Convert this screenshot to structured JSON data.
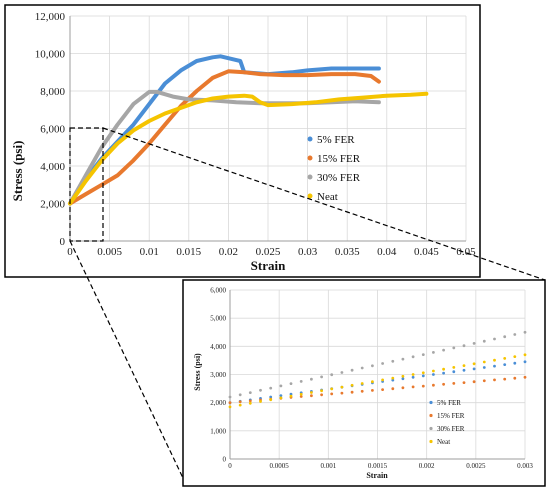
{
  "chart_data": [
    {
      "id": "main",
      "type": "line",
      "title": "",
      "xlabel": "Strain",
      "ylabel": "Stress (psi)",
      "xlim": [
        0,
        0.05
      ],
      "ylim": [
        0,
        12000
      ],
      "x_ticks": [
        0,
        0.005,
        0.01,
        0.015,
        0.02,
        0.025,
        0.03,
        0.035,
        0.04,
        0.045,
        0.05
      ],
      "x_tick_labels": [
        "0",
        "0.005",
        "0.01",
        "0.015",
        "0.02",
        "0.025",
        "0.03",
        "0.035",
        "0.04",
        "0.045",
        "0.05"
      ],
      "y_ticks": [
        0,
        2000,
        4000,
        6000,
        8000,
        10000,
        12000
      ],
      "y_tick_labels": [
        "0",
        "2,000",
        "4,000",
        "6,000",
        "8,000",
        "10,000",
        "12,000"
      ],
      "grid": true,
      "legend_position": "right",
      "series": [
        {
          "name": "5% FER",
          "color": "#4a8ed6",
          "x": [
            0,
            0.002,
            0.004,
            0.006,
            0.008,
            0.01,
            0.012,
            0.014,
            0.016,
            0.018,
            0.019,
            0.02,
            0.021,
            0.0215,
            0.022,
            0.025,
            0.028,
            0.03,
            0.033,
            0.036,
            0.039
          ],
          "y": [
            2000,
            3300,
            4400,
            5300,
            6200,
            7300,
            8400,
            9100,
            9600,
            9800,
            9850,
            9750,
            9650,
            9600,
            9000,
            8900,
            9000,
            9100,
            9200,
            9200,
            9200
          ]
        },
        {
          "name": "15% FER",
          "color": "#e8792e",
          "x": [
            0,
            0.002,
            0.004,
            0.006,
            0.008,
            0.01,
            0.012,
            0.014,
            0.016,
            0.018,
            0.02,
            0.022,
            0.024,
            0.027,
            0.03,
            0.033,
            0.036,
            0.038,
            0.039
          ],
          "y": [
            2000,
            2500,
            3000,
            3500,
            4300,
            5200,
            6200,
            7200,
            8000,
            8700,
            9050,
            9000,
            8900,
            8850,
            8850,
            8900,
            8900,
            8800,
            8500
          ]
        },
        {
          "name": "30% FER",
          "color": "#a6a6a6",
          "x": [
            0,
            0.002,
            0.004,
            0.006,
            0.008,
            0.01,
            0.011,
            0.013,
            0.015,
            0.018,
            0.021,
            0.024,
            0.027,
            0.03,
            0.033,
            0.036,
            0.039
          ],
          "y": [
            2000,
            3500,
            5000,
            6200,
            7300,
            7950,
            7950,
            7700,
            7550,
            7500,
            7400,
            7350,
            7350,
            7350,
            7400,
            7450,
            7400
          ]
        },
        {
          "name": "Neat",
          "color": "#f5c400",
          "x": [
            0,
            0.002,
            0.004,
            0.006,
            0.008,
            0.01,
            0.012,
            0.014,
            0.016,
            0.018,
            0.02,
            0.022,
            0.023,
            0.024,
            0.025,
            0.028,
            0.031,
            0.034,
            0.037,
            0.04,
            0.043,
            0.045
          ],
          "y": [
            2000,
            3200,
            4300,
            5200,
            5900,
            6400,
            6800,
            7100,
            7400,
            7600,
            7700,
            7750,
            7700,
            7400,
            7250,
            7300,
            7400,
            7550,
            7650,
            7750,
            7800,
            7850
          ]
        }
      ]
    },
    {
      "id": "inset",
      "type": "scatter",
      "title": "",
      "xlabel": "Strain",
      "ylabel": "Stress (psi)",
      "xlim": [
        0,
        0.003
      ],
      "ylim": [
        0,
        6000
      ],
      "x_ticks": [
        0,
        0.0005,
        0.001,
        0.0015,
        0.002,
        0.0025,
        0.003
      ],
      "x_tick_labels": [
        "0",
        "0.0005",
        "0.001",
        "0.0015",
        "0.002",
        "0.0025",
        "0.003"
      ],
      "y_ticks": [
        0,
        1000,
        2000,
        3000,
        4000,
        5000,
        6000
      ],
      "y_tick_labels": [
        "0",
        "1,000",
        "2,000",
        "3,000",
        "4,000",
        "5,000",
        "6,000"
      ],
      "grid": true,
      "legend_position": "bottom-center",
      "series": [
        {
          "name": "5% FER",
          "color": "#4a8ed6",
          "start": 2000,
          "end": 3450
        },
        {
          "name": "15% FER",
          "color": "#e8792e",
          "start": 2000,
          "end": 2900
        },
        {
          "name": "30% FER",
          "color": "#a6a6a6",
          "start": 2200,
          "end": 4500
        },
        {
          "name": "Neat",
          "color": "#f5c400",
          "start": 1850,
          "end": 3700
        }
      ]
    }
  ]
}
